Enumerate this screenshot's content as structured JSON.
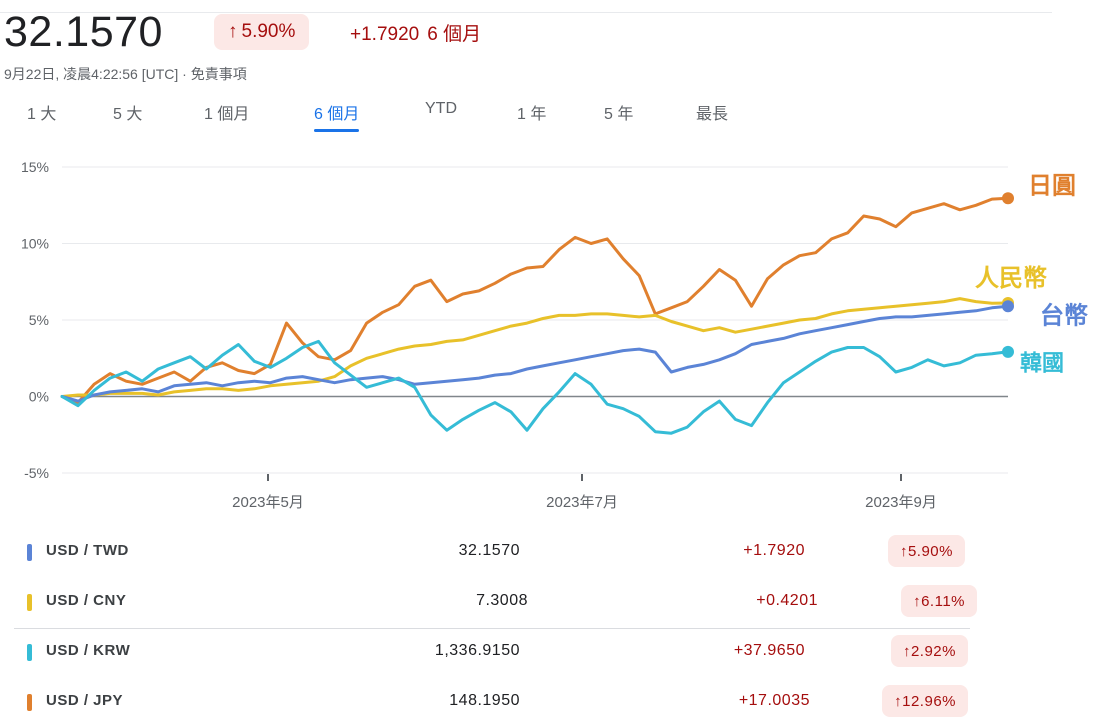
{
  "header": {
    "price": "32.1570",
    "pct_change": "5.90%",
    "abs_change": "+1.7920",
    "period": "6 個月",
    "up_arrow": "↑",
    "timestamp": "9月22日, 凌晨4:22:56 [UTC] · ",
    "disclaimer": "免責事項"
  },
  "ranges": [
    {
      "label": "1 大"
    },
    {
      "label": "5 大"
    },
    {
      "label": "1 個月"
    },
    {
      "label": "6 個月",
      "active": true
    },
    {
      "label": "YTD"
    },
    {
      "label": "1 年"
    },
    {
      "label": "5 年"
    },
    {
      "label": "最長"
    }
  ],
  "colors": {
    "TWD": "#5b84d6",
    "CNY": "#e8c12a",
    "KRW": "#35bcd6",
    "JPY": "#e0802e",
    "negative_red": "#a50e0e",
    "badge_bg": "#fce8e6",
    "active_tab": "#1a73e8"
  },
  "chart_data": {
    "type": "line",
    "yticks": [
      "15%",
      "10%",
      "5%",
      "0%",
      "-5%"
    ],
    "xticks": [
      "2023年5月",
      "2023年7月",
      "2023年9月"
    ],
    "ylim": [
      -5,
      15
    ],
    "grid": true,
    "series": [
      {
        "name": "日圓",
        "key": "JPY",
        "values": [
          0,
          -0.4,
          0.8,
          1.5,
          1.0,
          0.8,
          1.2,
          1.6,
          1.0,
          1.9,
          2.2,
          1.7,
          1.5,
          2.1,
          4.8,
          3.5,
          2.6,
          2.4,
          3.0,
          4.8,
          5.5,
          6.0,
          7.2,
          7.6,
          6.2,
          6.7,
          6.9,
          7.4,
          8.0,
          8.4,
          8.5,
          9.6,
          10.4,
          10.0,
          10.3,
          9.0,
          7.9,
          5.4,
          5.8,
          6.2,
          7.2,
          8.3,
          7.6,
          5.9,
          7.7,
          8.6,
          9.2,
          9.4,
          10.3,
          10.7,
          11.8,
          11.6,
          11.1,
          12.0,
          12.3,
          12.6,
          12.2,
          12.5,
          12.9,
          12.96
        ]
      },
      {
        "name": "人民幣",
        "key": "CNY",
        "values": [
          0,
          0.1,
          0.1,
          0.2,
          0.2,
          0.2,
          0.1,
          0.3,
          0.4,
          0.5,
          0.5,
          0.4,
          0.5,
          0.7,
          0.8,
          0.9,
          1.0,
          1.3,
          2.0,
          2.5,
          2.8,
          3.1,
          3.3,
          3.4,
          3.6,
          3.7,
          4.0,
          4.3,
          4.6,
          4.8,
          5.1,
          5.3,
          5.3,
          5.4,
          5.4,
          5.3,
          5.2,
          5.3,
          4.9,
          4.6,
          4.3,
          4.5,
          4.2,
          4.4,
          4.6,
          4.8,
          5.0,
          5.1,
          5.4,
          5.6,
          5.7,
          5.8,
          5.9,
          6.0,
          6.1,
          6.2,
          6.4,
          6.2,
          6.1,
          6.11
        ]
      },
      {
        "name": "台幣",
        "key": "TWD",
        "values": [
          0,
          -0.3,
          0.1,
          0.3,
          0.4,
          0.5,
          0.3,
          0.7,
          0.8,
          0.9,
          0.7,
          0.9,
          1.0,
          0.9,
          1.2,
          1.3,
          1.1,
          0.9,
          1.1,
          1.2,
          1.3,
          1.1,
          0.8,
          0.9,
          1.0,
          1.1,
          1.2,
          1.4,
          1.5,
          1.8,
          2.0,
          2.2,
          2.4,
          2.6,
          2.8,
          3.0,
          3.1,
          2.9,
          1.6,
          1.9,
          2.1,
          2.4,
          2.8,
          3.4,
          3.6,
          3.8,
          4.1,
          4.3,
          4.5,
          4.7,
          4.9,
          5.1,
          5.2,
          5.2,
          5.3,
          5.4,
          5.5,
          5.6,
          5.8,
          5.9
        ]
      },
      {
        "name": "韓國",
        "key": "KRW",
        "values": [
          0,
          -0.6,
          0.4,
          1.2,
          1.6,
          1.0,
          1.8,
          2.2,
          2.6,
          1.8,
          2.7,
          3.4,
          2.3,
          1.9,
          2.5,
          3.2,
          3.6,
          2.2,
          1.4,
          0.6,
          0.9,
          1.2,
          0.6,
          -1.2,
          -2.2,
          -1.5,
          -0.9,
          -0.4,
          -1.0,
          -2.2,
          -0.8,
          0.3,
          1.5,
          0.8,
          -0.5,
          -0.8,
          -1.3,
          -2.3,
          -2.4,
          -2.0,
          -1.0,
          -0.3,
          -1.5,
          -1.9,
          -0.4,
          0.9,
          1.6,
          2.3,
          2.9,
          3.2,
          3.2,
          2.6,
          1.6,
          1.9,
          2.4,
          2.0,
          2.2,
          2.7,
          2.8,
          2.92
        ]
      }
    ]
  },
  "table": {
    "rows": [
      {
        "key": "TWD",
        "pair": "USD / TWD",
        "value": "32.1570",
        "change": "+1.7920",
        "pct": "5.90%"
      },
      {
        "key": "CNY",
        "pair": "USD / CNY",
        "value": "7.3008",
        "change": "+0.4201",
        "pct": "6.11%"
      },
      {
        "key": "KRW",
        "pair": "USD / KRW",
        "value": "1,336.9150",
        "change": "+37.9650",
        "pct": "2.92%"
      },
      {
        "key": "JPY",
        "pair": "USD / JPY",
        "value": "148.1950",
        "change": "+17.0035",
        "pct": "12.96%"
      }
    ]
  }
}
